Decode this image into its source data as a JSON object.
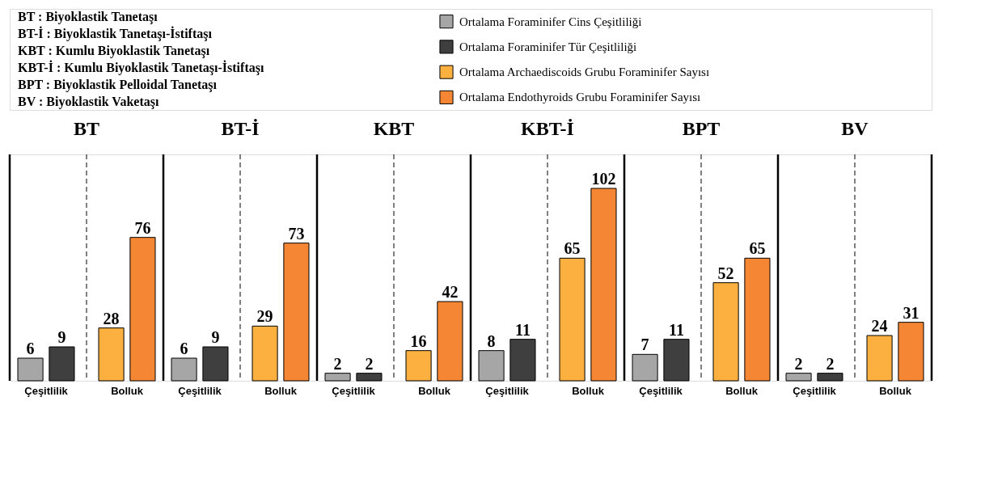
{
  "chart_data": [
    {
      "type": "bar",
      "title": "BT",
      "categories": [
        "Çeşitlilik",
        "Bolluk"
      ],
      "ylim": [
        0,
        60
      ],
      "y2lim": [
        0,
        120
      ],
      "tick_labels": "x",
      "data_labels": true,
      "legend": "top",
      "annotations": [
        "BT : Biyoklastik Tanetaşı",
        "BT-İ : Biyoklastik Tanetaşı-İstiftaşı",
        "KBT : Kumlu Biyoklastik Tanetaşı",
        "KBT-İ : Kumlu Biyoklastik Tanetaşı-İstiftaşı",
        "BPT : Biyoklastik Pelloidal Tanetaşı",
        "BV : Biyoklastik Vaketaşı"
      ],
      "series": [
        {
          "name": "Ortalama Foraminifer Cins Çeşitliliği",
          "color": "#a6a6a6",
          "values": [
            6,
            null
          ]
        },
        {
          "name": "Ortalama Foraminifer Tür Çeşitliliği",
          "color": "#3f3f3f",
          "values": [
            9,
            null
          ]
        },
        {
          "name": "Ortalama Archaediscoids Grubu Foraminifer Sayısı",
          "color": "#fbb040",
          "values": [
            null,
            28
          ],
          "axis": "y2"
        },
        {
          "name": "Ortalama Endothyroids Grubu Foraminifer Sayısı",
          "color": "#f58634",
          "values": [
            null,
            76
          ],
          "axis": "y2"
        }
      ]
    },
    {
      "type": "bar",
      "title": "BT-İ",
      "categories": [
        "Çeşitlilik",
        "Bolluk"
      ],
      "ylim": [
        0,
        60
      ],
      "y2lim": [
        0,
        120
      ],
      "tick_labels": "x",
      "data_labels": true,
      "series": [
        {
          "color": "#a6a6a6",
          "values": [
            6,
            null
          ]
        },
        {
          "color": "#3f3f3f",
          "values": [
            9,
            null
          ]
        },
        {
          "color": "#fbb040",
          "values": [
            null,
            29
          ],
          "axis": "y2"
        },
        {
          "color": "#f58634",
          "values": [
            null,
            73
          ],
          "axis": "y2"
        }
      ]
    },
    {
      "type": "bar",
      "title": "KBT",
      "categories": [
        "Çeşitlilik",
        "Bolluk"
      ],
      "ylim": [
        0,
        60
      ],
      "y2lim": [
        0,
        120
      ],
      "tick_labels": "x",
      "data_labels": true,
      "series": [
        {
          "color": "#a6a6a6",
          "values": [
            2,
            null
          ]
        },
        {
          "color": "#3f3f3f",
          "values": [
            2,
            null
          ]
        },
        {
          "color": "#fbb040",
          "values": [
            null,
            16
          ],
          "axis": "y2"
        },
        {
          "color": "#f58634",
          "values": [
            null,
            42
          ],
          "axis": "y2"
        }
      ]
    },
    {
      "type": "bar",
      "title": "KBT-İ",
      "categories": [
        "Çeşitlilik",
        "Bolluk"
      ],
      "ylim": [
        0,
        60
      ],
      "y2lim": [
        0,
        120
      ],
      "tick_labels": "x",
      "data_labels": true,
      "series": [
        {
          "color": "#a6a6a6",
          "values": [
            8,
            null
          ]
        },
        {
          "color": "#3f3f3f",
          "values": [
            11,
            null
          ]
        },
        {
          "color": "#fbb040",
          "values": [
            null,
            65
          ],
          "axis": "y2"
        },
        {
          "color": "#f58634",
          "values": [
            null,
            102
          ],
          "axis": "y2"
        }
      ]
    },
    {
      "type": "bar",
      "title": "BPT",
      "categories": [
        "Çeşitlilik",
        "Bolluk"
      ],
      "ylim": [
        0,
        60
      ],
      "y2lim": [
        0,
        120
      ],
      "tick_labels": "x",
      "data_labels": true,
      "series": [
        {
          "color": "#a6a6a6",
          "values": [
            7,
            null
          ]
        },
        {
          "color": "#3f3f3f",
          "values": [
            11,
            null
          ]
        },
        {
          "color": "#fbb040",
          "values": [
            null,
            52
          ],
          "axis": "y2"
        },
        {
          "color": "#f58634",
          "values": [
            null,
            65
          ],
          "axis": "y2"
        }
      ]
    },
    {
      "type": "bar",
      "title": "BV",
      "categories": [
        "Çeşitlilik",
        "Bolluk"
      ],
      "ylim": [
        0,
        60
      ],
      "y2lim": [
        0,
        120
      ],
      "tick_labels": "x",
      "data_labels": true,
      "series": [
        {
          "color": "#a6a6a6",
          "values": [
            2,
            null
          ]
        },
        {
          "color": "#3f3f3f",
          "values": [
            2,
            null
          ]
        },
        {
          "color": "#fbb040",
          "values": [
            null,
            24
          ],
          "axis": "y2"
        },
        {
          "color": "#f58634",
          "values": [
            null,
            31
          ],
          "axis": "y2"
        }
      ]
    }
  ]
}
